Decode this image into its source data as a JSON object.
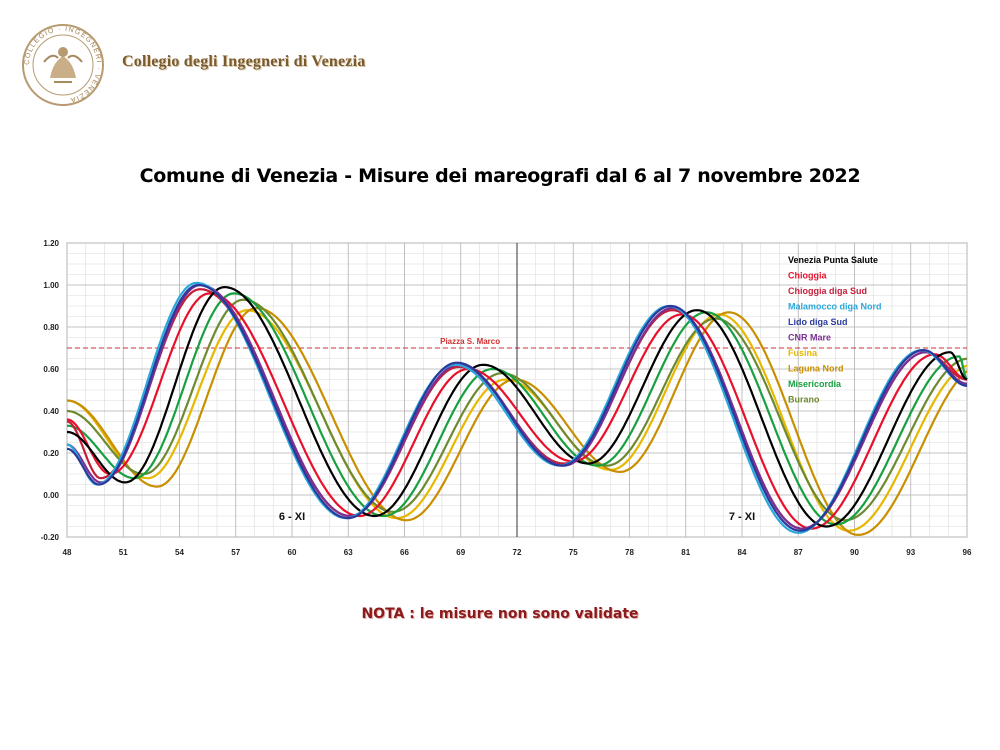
{
  "header": {
    "org_name": "Collegio degli Ingegneri di Venezia",
    "logo_text": "COLLEGIO · INGEGNERI · VENEZIA"
  },
  "page_title": "Comune di Venezia  -  Misure dei mareografi dal 6 al 7 novembre 2022",
  "note": "NOTA :  le misure non sono validate",
  "chart_data": {
    "type": "line",
    "title": "",
    "xlabel": "",
    "ylabel": "",
    "xlim": [
      48,
      96
    ],
    "ylim": [
      -0.2,
      1.2
    ],
    "x_ticks": [
      48,
      51,
      54,
      57,
      60,
      63,
      66,
      69,
      72,
      75,
      78,
      81,
      84,
      87,
      90,
      93,
      96
    ],
    "y_ticks": [
      -0.2,
      0.0,
      0.2,
      0.4,
      0.6,
      0.8,
      1.0,
      1.2
    ],
    "grid": true,
    "legend_position": "top-right",
    "day_separator_x": 72,
    "day_labels": [
      {
        "x": 60,
        "text": "6 - XI"
      },
      {
        "x": 84,
        "text": "7 - XI"
      }
    ],
    "reference_line": {
      "y": 0.7,
      "label": "Piazza S. Marco",
      "color": "#d03030"
    },
    "x": [
      48,
      50.3,
      55.6,
      63.6,
      69.4,
      75.0,
      80.8,
      87.7,
      94.3,
      96
    ],
    "series": [
      {
        "name": "Venezia Punta Salute",
        "color": "#000000",
        "values": [
          0.3,
          0.06,
          0.99,
          -0.1,
          0.62,
          0.15,
          0.88,
          -0.15,
          0.68,
          0.55
        ],
        "lag": 0.8
      },
      {
        "name": "Chioggia",
        "color": "#e8102a",
        "values": [
          0.36,
          0.1,
          0.96,
          -0.1,
          0.6,
          0.16,
          0.86,
          -0.16,
          0.67,
          0.55
        ],
        "lag": 0.0
      },
      {
        "name": "Chioggia diga Sud",
        "color": "#c41e3a",
        "values": [
          0.35,
          0.08,
          0.98,
          -0.1,
          0.61,
          0.15,
          0.88,
          -0.16,
          0.68,
          0.55
        ],
        "lag": -0.5
      },
      {
        "name": "Malamocco diga Nord",
        "color": "#2aa8dc",
        "values": [
          0.24,
          0.05,
          1.01,
          -0.11,
          0.62,
          0.14,
          0.9,
          -0.18,
          0.69,
          0.52
        ],
        "lag": -0.7
      },
      {
        "name": "Lido diga Sud",
        "color": "#2a3a9c",
        "values": [
          0.22,
          0.05,
          1.0,
          -0.11,
          0.63,
          0.14,
          0.9,
          -0.17,
          0.69,
          0.52
        ],
        "lag": -0.6
      },
      {
        "name": "CNR Mare",
        "color": "#7a3090",
        "values": [
          0.24,
          0.06,
          1.0,
          -0.1,
          0.62,
          0.14,
          0.89,
          -0.16,
          0.68,
          0.53
        ],
        "lag": -0.5
      },
      {
        "name": "Fusina",
        "color": "#e6b800",
        "values": [
          0.45,
          0.08,
          0.88,
          -0.11,
          0.55,
          0.12,
          0.86,
          -0.17,
          0.62,
          0.52
        ],
        "lag": 2.0
      },
      {
        "name": "Laguna Nord",
        "color": "#c89000",
        "values": [
          0.45,
          0.04,
          0.89,
          -0.12,
          0.55,
          0.11,
          0.87,
          -0.19,
          0.62,
          0.52
        ],
        "lag": 2.5
      },
      {
        "name": "Misericordia",
        "color": "#18a040",
        "values": [
          0.33,
          0.08,
          0.96,
          -0.1,
          0.6,
          0.14,
          0.87,
          -0.14,
          0.66,
          0.55
        ],
        "lag": 1.3
      },
      {
        "name": "Burano",
        "color": "#6e8a30",
        "values": [
          0.4,
          0.1,
          0.93,
          -0.08,
          0.58,
          0.14,
          0.84,
          -0.12,
          0.65,
          0.56
        ],
        "lag": 1.8
      }
    ]
  }
}
